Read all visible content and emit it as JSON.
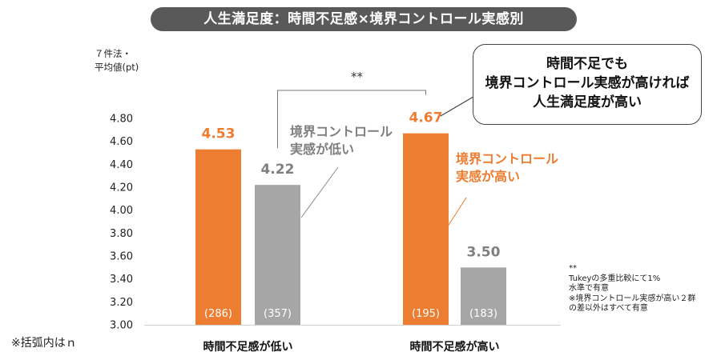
{
  "title": "人生満足度：時間不足感×境界コントロール実感別",
  "y_unit_line1": "７件法・",
  "y_unit_line2": "平均値(pt)",
  "callout": {
    "line1": "時間不足でも",
    "line2": "境界コントロール実感が高ければ",
    "line3": "人生満足度が高い"
  },
  "annotation_low": {
    "line1": "境界コントロール",
    "line2": "実感が低い"
  },
  "annotation_high": {
    "line1": "境界コントロール",
    "line2": "実感が高い"
  },
  "significance_mark": "**",
  "note": {
    "line1": "**",
    "line2": "Tukeyの多重比較にて1%",
    "line3": "水準で有意",
    "line4": "※境界コントロール実感が高い２群",
    "line5": "の差以外はすべて有意"
  },
  "footnote": "※括弧内はｎ",
  "colors": {
    "high": "#ed7d31",
    "low": "#a6a6a6"
  },
  "chart_data": {
    "type": "bar",
    "title": "人生満足度：時間不足感×境界コントロール実感別",
    "ylabel": "７件法・平均値(pt)",
    "ylim": [
      3.0,
      4.8
    ],
    "yticks": [
      "3.00",
      "3.20",
      "3.40",
      "3.60",
      "3.80",
      "4.00",
      "4.20",
      "4.40",
      "4.60",
      "4.80"
    ],
    "categories": [
      "時間不足感が低い",
      "時間不足感が高い"
    ],
    "series": [
      {
        "name": "境界コントロール実感が高い",
        "color": "#ed7d31",
        "values": [
          4.53,
          4.67
        ],
        "labels": [
          "4.53",
          "4.67"
        ],
        "n": [
          "(286)",
          "(195)"
        ]
      },
      {
        "name": "境界コントロール実感が低い",
        "color": "#a6a6a6",
        "values": [
          4.22,
          3.5
        ],
        "labels": [
          "4.22",
          "3.50"
        ],
        "n": [
          "(357)",
          "(183)"
        ]
      }
    ]
  }
}
